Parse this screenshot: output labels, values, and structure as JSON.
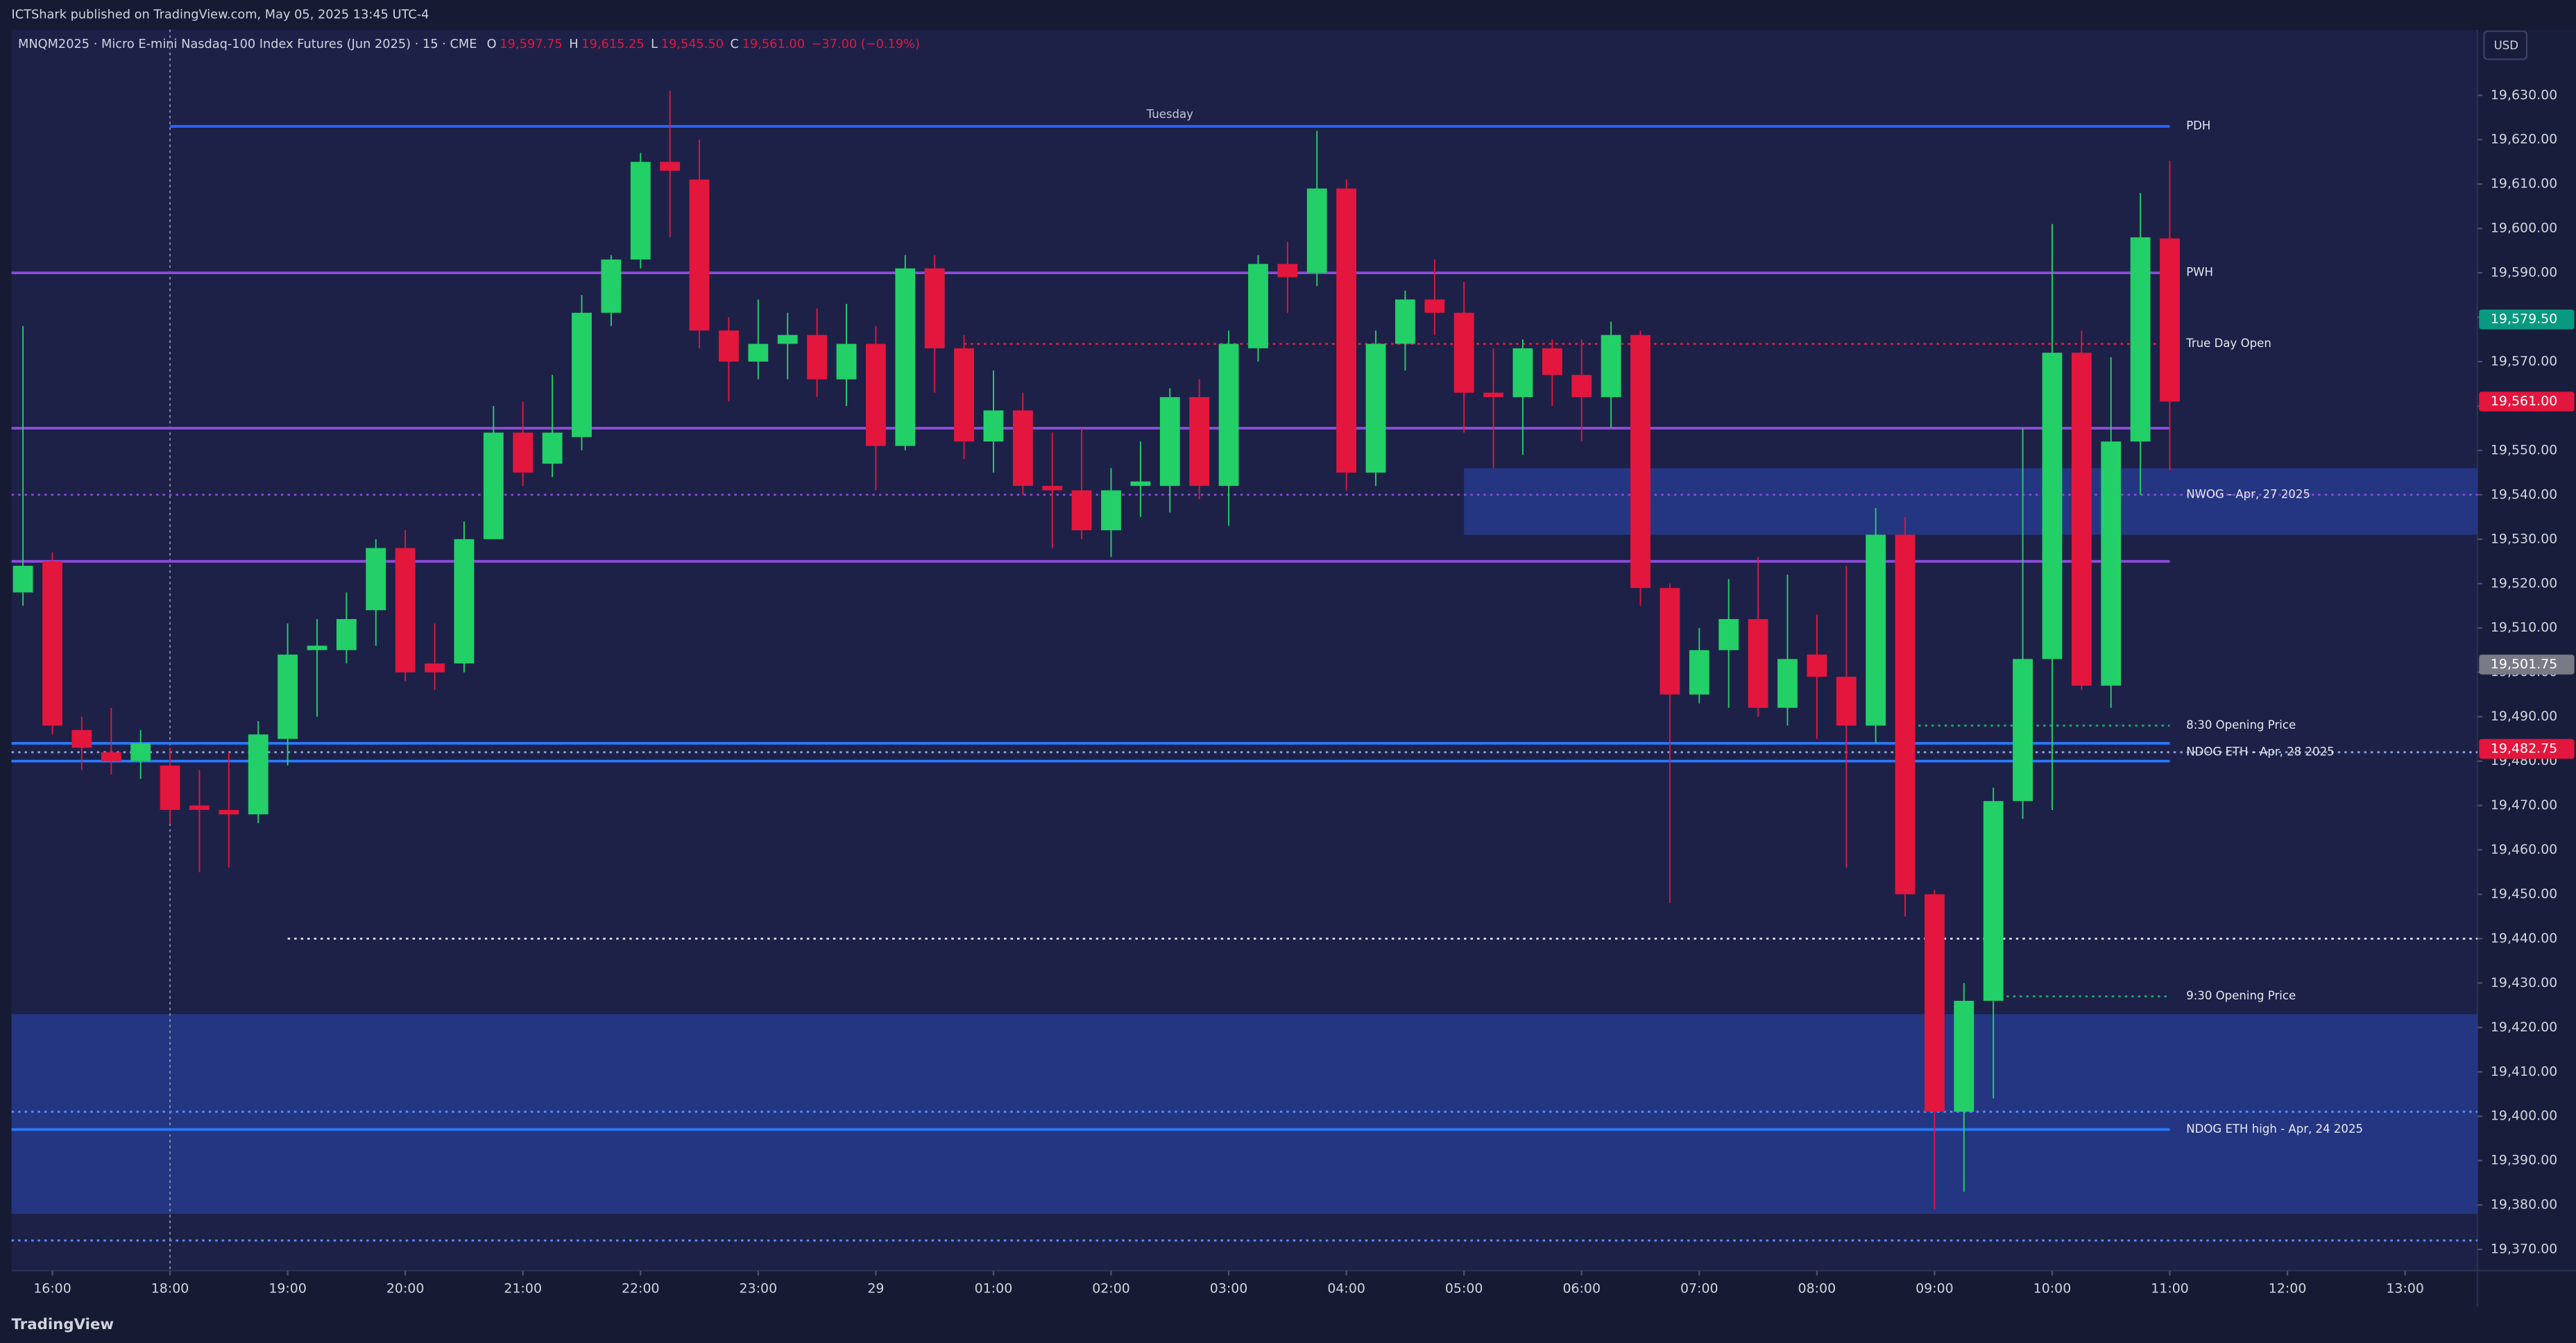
{
  "header": {
    "publisher": "ICTShark published on TradingView.com, May 05, 2025 13:45 UTC-4",
    "symbol": "MNQM2025 · Micro E-mini Nasdaq-100 Index Futures (Jun 2025) · 15 · CME",
    "ohlc": [
      {
        "key": "O",
        "value": "19,597.75"
      },
      {
        "key": "H",
        "value": "19,615.25"
      },
      {
        "key": "L",
        "value": "19,545.50"
      },
      {
        "key": "C",
        "value": "19,561.00"
      }
    ],
    "change": "−37.00 (−0.19%)"
  },
  "footer": "TradingView",
  "chart_data": {
    "type": "candlestick",
    "x": [
      "15:45",
      "16:00",
      "16:15",
      "16:30",
      "16:45",
      "18:00",
      "18:15",
      "18:30",
      "18:45",
      "19:00",
      "19:15",
      "19:30",
      "19:45",
      "20:00",
      "20:15",
      "20:30",
      "20:45",
      "21:00",
      "21:15",
      "21:30",
      "21:45",
      "22:00",
      "22:15",
      "22:30",
      "22:45",
      "23:00",
      "23:15",
      "23:30",
      "23:45",
      "00:00",
      "00:15",
      "00:30",
      "00:45",
      "01:00",
      "01:15",
      "01:30",
      "01:45",
      "02:00",
      "02:15",
      "02:30",
      "02:45",
      "03:00",
      "03:15",
      "03:30",
      "03:45",
      "04:00",
      "04:15",
      "04:30",
      "04:45",
      "05:00",
      "05:15",
      "05:30",
      "05:45",
      "06:00",
      "06:15",
      "06:30",
      "06:45",
      "07:00",
      "07:15",
      "07:30",
      "07:45",
      "08:00",
      "08:15",
      "08:30",
      "08:45",
      "09:00",
      "09:15",
      "09:30",
      "09:45",
      "10:00",
      "10:15",
      "10:30",
      "10:45",
      "11:00"
    ],
    "open": [
      19518,
      19525,
      19487,
      19482,
      19480,
      19479,
      19470,
      19469,
      19468,
      19485,
      19505,
      19505,
      19514,
      19528,
      19502,
      19502,
      19530,
      19554,
      19547,
      19553,
      19581,
      19593,
      19615,
      19611,
      19577,
      19570,
      19574,
      19576,
      19566,
      19574,
      19551,
      19591,
      19573,
      19552,
      19559,
      19542,
      19541,
      19532,
      19542,
      19542,
      19562,
      19542,
      19573,
      19592,
      19590,
      19609,
      19545,
      19574,
      19584,
      19581,
      19563,
      19562,
      19573,
      19567,
      19562,
      19576,
      19519,
      19495,
      19505,
      19512,
      19492,
      19504,
      19499,
      19488,
      19531,
      19450,
      19401,
      19426,
      19471,
      19503,
      19572,
      19497,
      19552,
      19597.75
    ],
    "high": [
      19578,
      19527,
      19490,
      19492,
      19487,
      19483,
      19478,
      19482,
      19489,
      19511,
      19512,
      19518,
      19530,
      19532,
      19511,
      19534,
      19560,
      19561,
      19567,
      19585,
      19594,
      19617,
      19631,
      19620,
      19580,
      19584,
      19581,
      19582,
      19583,
      19578,
      19594,
      19594,
      19576,
      19568,
      19563,
      19554,
      19555,
      19546,
      19552,
      19564,
      19566,
      19577,
      19594,
      19597,
      19622,
      19611,
      19577,
      19586,
      19593,
      19588,
      19573,
      19575,
      19575,
      19575,
      19579,
      19577,
      19520,
      19510,
      19521,
      19526,
      19522,
      19513,
      19524,
      19537,
      19535,
      19451,
      19430,
      19474,
      19555,
      19601,
      19577,
      19571,
      19608,
      19615.25
    ],
    "low": [
      19515,
      19486,
      19478,
      19477,
      19476,
      19466,
      19455,
      19456,
      19466,
      19479,
      19490,
      19502,
      19506,
      19498,
      19496,
      19500,
      19530,
      19542,
      19544,
      19550,
      19578,
      19591,
      19598,
      19573,
      19561,
      19566,
      19566,
      19562,
      19560,
      19541,
      19550,
      19563,
      19548,
      19545,
      19540,
      19528,
      19530,
      19526,
      19535,
      19536,
      19539,
      19533,
      19570,
      19581,
      19587,
      19541,
      19542,
      19568,
      19576,
      19554,
      19546,
      19549,
      19560,
      19552,
      19555,
      19515,
      19448,
      19493,
      19492,
      19490,
      19488,
      19485,
      19456,
      19484,
      19445,
      19379,
      19383,
      19404,
      19467,
      19469,
      19496,
      19492,
      19540,
      19545.5
    ],
    "close": [
      19524,
      19488,
      19483,
      19480,
      19484,
      19469,
      19469,
      19468,
      19486,
      19504,
      19506,
      19512,
      19528,
      19500,
      19500,
      19530,
      19554,
      19545,
      19554,
      19581,
      19593,
      19615,
      19613,
      19577,
      19570,
      19574,
      19576,
      19566,
      19574,
      19551,
      19591,
      19573,
      19552,
      19559,
      19542,
      19541,
      19532,
      19541,
      19543,
      19562,
      19542,
      19574,
      19592,
      19589,
      19609,
      19545,
      19574,
      19584,
      19581,
      19563,
      19562,
      19573,
      19567,
      19562,
      19576,
      19519,
      19495,
      19505,
      19512,
      19492,
      19503,
      19499,
      19488,
      19531,
      19450,
      19401,
      19426,
      19471,
      19503,
      19572,
      19497,
      19552,
      19598,
      19561
    ],
    "up_color": "#22d067",
    "down_color": "#e3163d",
    "xlim": [
      -0.39,
      83.46
    ],
    "xticks": [
      {
        "value": 1,
        "label": "16:00"
      },
      {
        "value": 5,
        "label": "18:00"
      },
      {
        "value": 9,
        "label": "19:00"
      },
      {
        "value": 13,
        "label": "20:00"
      },
      {
        "value": 17,
        "label": "21:00"
      },
      {
        "value": 21,
        "label": "22:00"
      },
      {
        "value": 25,
        "label": "23:00"
      },
      {
        "value": 29,
        "label": "29"
      },
      {
        "value": 33,
        "label": "01:00"
      },
      {
        "value": 37,
        "label": "02:00"
      },
      {
        "value": 41,
        "label": "03:00"
      },
      {
        "value": 45,
        "label": "04:00"
      },
      {
        "value": 49,
        "label": "05:00"
      },
      {
        "value": 53,
        "label": "06:00"
      },
      {
        "value": 57,
        "label": "07:00"
      },
      {
        "value": 61,
        "label": "08:00"
      },
      {
        "value": 65,
        "label": "09:00"
      },
      {
        "value": 69,
        "label": "10:00"
      },
      {
        "value": 73,
        "label": "11:00"
      },
      {
        "value": 77,
        "label": "12:00"
      },
      {
        "value": 81,
        "label": "13:00"
      }
    ],
    "ylim": [
      19365.2,
      19644.8
    ],
    "yticks": [
      {
        "value": 19370,
        "label": "19,370.00"
      },
      {
        "value": 19380,
        "label": "19,380.00"
      },
      {
        "value": 19390,
        "label": "19,390.00"
      },
      {
        "value": 19400,
        "label": "19,400.00"
      },
      {
        "value": 19410,
        "label": "19,410.00"
      },
      {
        "value": 19420,
        "label": "19,420.00"
      },
      {
        "value": 19430,
        "label": "19,430.00"
      },
      {
        "value": 19440,
        "label": "19,440.00"
      },
      {
        "value": 19450,
        "label": "19,450.00"
      },
      {
        "value": 19460,
        "label": "19,460.00"
      },
      {
        "value": 19470,
        "label": "19,470.00"
      },
      {
        "value": 19480,
        "label": "19,480.00"
      },
      {
        "value": 19490,
        "label": "19,490.00"
      },
      {
        "value": 19500,
        "label": "19,500.00"
      },
      {
        "value": 19510,
        "label": "19,510.00"
      },
      {
        "value": 19520,
        "label": "19,520.00"
      },
      {
        "value": 19530,
        "label": "19,530.00"
      },
      {
        "value": 19540,
        "label": "19,540.00"
      },
      {
        "value": 19550,
        "label": "19,550.00"
      },
      {
        "value": 19560,
        "label": "19,560.00"
      },
      {
        "value": 19570,
        "label": "19,570.00"
      },
      {
        "value": 19580,
        "label": "19,580.00"
      },
      {
        "value": 19590,
        "label": "19,590.00"
      },
      {
        "value": 19600,
        "label": "19,600.00"
      },
      {
        "value": 19610,
        "label": "19,610.00"
      },
      {
        "value": 19620,
        "label": "19,620.00"
      },
      {
        "value": 19630,
        "label": "19,630.00"
      }
    ],
    "currency": "USD",
    "session_breaks": [
      5
    ],
    "zones": [
      {
        "top": 19546,
        "bottom": 19531,
        "start": 49,
        "color": "#26398c"
      },
      {
        "top": 19423,
        "bottom": 19378,
        "color": "#26398c"
      }
    ],
    "levels": [
      {
        "value": 19623,
        "start": 5,
        "end": 73,
        "color": "#2962ff",
        "style": "solid",
        "label": "PDH",
        "caption": "Tuesday"
      },
      {
        "value": 19590,
        "end": 73,
        "color": "#8c4bd9",
        "style": "solid",
        "label": "PWH"
      },
      {
        "value": 19574,
        "start": 32,
        "end": 73,
        "color": "#e3163d",
        "style": "dotted",
        "label": "True Day Open"
      },
      {
        "value": 19555,
        "end": 73,
        "color": "#8c4bd9",
        "style": "solid"
      },
      {
        "value": 19540,
        "color": "#8c4bd9",
        "style": "dotted",
        "label": "NWOG - Apr, 27 2025"
      },
      {
        "value": 19525,
        "end": 73,
        "color": "#8c4bd9",
        "style": "solid"
      },
      {
        "value": 19488,
        "start": 64,
        "end": 73,
        "color": "#1fa36e",
        "style": "dotted",
        "label": "8:30 Opening Price"
      },
      {
        "value": 19484,
        "end": 73,
        "color": "#2979ff",
        "style": "solid"
      },
      {
        "value": 19482,
        "color": "#8aa0d8",
        "style": "dotted",
        "label": "NDOG ETH - Apr, 28 2025"
      },
      {
        "value": 19480,
        "end": 73,
        "color": "#2979ff",
        "style": "solid"
      },
      {
        "value": 19440,
        "start": 9,
        "color": "#d9dce6",
        "style": "dotted"
      },
      {
        "value": 19427,
        "start": 67,
        "end": 73,
        "color": "#1fa36e",
        "style": "dotted",
        "label": "9:30 Opening Price"
      },
      {
        "value": 19401,
        "color": "#5b8cff",
        "style": "dotted"
      },
      {
        "value": 19397,
        "end": 73,
        "color": "#2979ff",
        "style": "solid",
        "label": "NDOG ETH high - Apr, 24 2025"
      },
      {
        "value": 19372,
        "color": "#5b8cff",
        "style": "dotted"
      }
    ],
    "price_tags": [
      {
        "value": 19579.5,
        "label": "19,579.50",
        "color": "#089981"
      },
      {
        "value": 19561,
        "label": "19,561.00",
        "color": "#e3163d"
      },
      {
        "value": 19501.75,
        "label": "19,501.75",
        "color": "#787b86"
      },
      {
        "value": 19482.75,
        "label": "19,482.75",
        "color": "#e3163d"
      }
    ]
  }
}
